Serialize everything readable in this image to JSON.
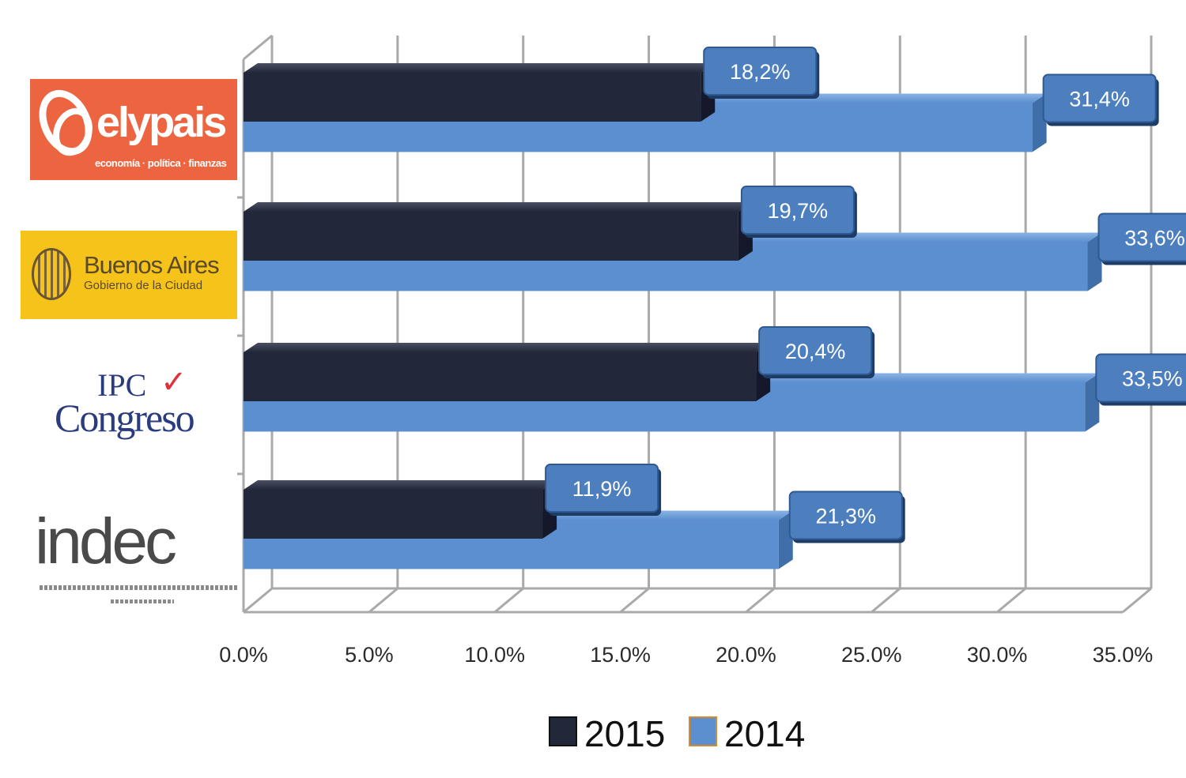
{
  "chart_data": {
    "type": "bar",
    "orientation": "horizontal",
    "style": "3d",
    "categories": [
      "elypais",
      "Buenos Aires",
      "IPC Congreso",
      "indec"
    ],
    "series": [
      {
        "name": "2015",
        "color": "#23273a",
        "values": [
          18.2,
          19.7,
          20.4,
          11.9
        ],
        "labels": [
          "18,2%",
          "19,7%",
          "20,4%",
          "11,9%"
        ]
      },
      {
        "name": "2014",
        "color": "#5b8fcf",
        "values": [
          31.4,
          33.6,
          33.5,
          21.3
        ],
        "labels": [
          "31,4%",
          "33,6%",
          "33,5%",
          "21,3%"
        ]
      }
    ],
    "xlim": [
      0,
      35
    ],
    "x_ticks": [
      "0.0%",
      "5.0%",
      "10.0%",
      "15.0%",
      "20.0%",
      "25.0%",
      "30.0%",
      "35.0%"
    ],
    "grid": true,
    "legend_position": "bottom",
    "data_label_color": "#4d7fbf"
  },
  "logos": {
    "elypais": {
      "brand": "elypais",
      "tagline": "economía · política · finanzas"
    },
    "buenos_aires": {
      "name": "Buenos Aires",
      "subtitle": "Gobierno de la Ciudad"
    },
    "ipc_congreso": {
      "line1": "IPC",
      "line2": "Congreso"
    },
    "indec": {
      "word": "indec"
    }
  }
}
